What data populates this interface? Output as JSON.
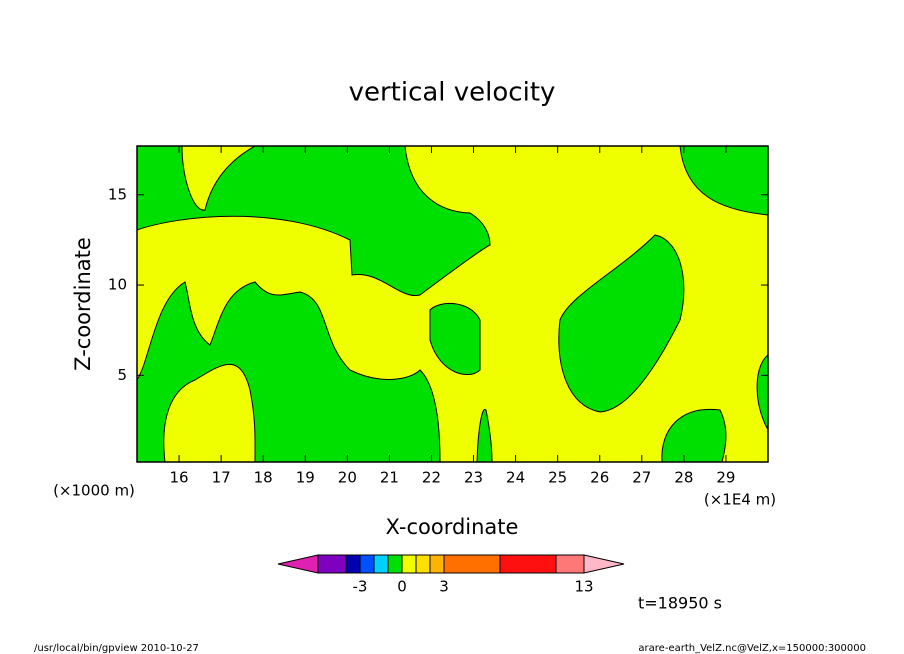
{
  "chart_data": {
    "type": "contour",
    "title": "vertical velocity",
    "xlabel": "X-coordinate",
    "ylabel": "Z-coordinate",
    "x_unit_left": "(×1000 m)",
    "x_unit_right": "(×1E4 m)",
    "xlim": [
      15,
      30
    ],
    "xticks": [
      16,
      17,
      18,
      19,
      20,
      21,
      22,
      23,
      24,
      25,
      26,
      27,
      28,
      29
    ],
    "ylim": [
      0.2,
      17.7
    ],
    "yticks": [
      5,
      10,
      15
    ],
    "colorbar": {
      "levels": [
        -6,
        -4,
        -3,
        -2,
        -1,
        0,
        1,
        2,
        3,
        7,
        11,
        13
      ],
      "colors": [
        "#8000c0",
        "#0000b0",
        "#0050ff",
        "#00d0ff",
        "#00e000",
        "#f0ff00",
        "#ffe000",
        "#ffb400",
        "#ff7000",
        "#ff1010",
        "#ff7878"
      ],
      "under_color": "#e020b0",
      "over_color": "#ffb8c8",
      "ticks": [
        -3,
        0,
        3,
        13
      ]
    },
    "field_colors": {
      "negative": "#00e000",
      "positive": "#f0ff00"
    },
    "time_label": "t=18950 s",
    "footer_left": "/usr/local/bin/gpview  2010-10-27",
    "footer_right": "arare-earth_VelZ.nc@VelZ,x=150000:300000"
  }
}
